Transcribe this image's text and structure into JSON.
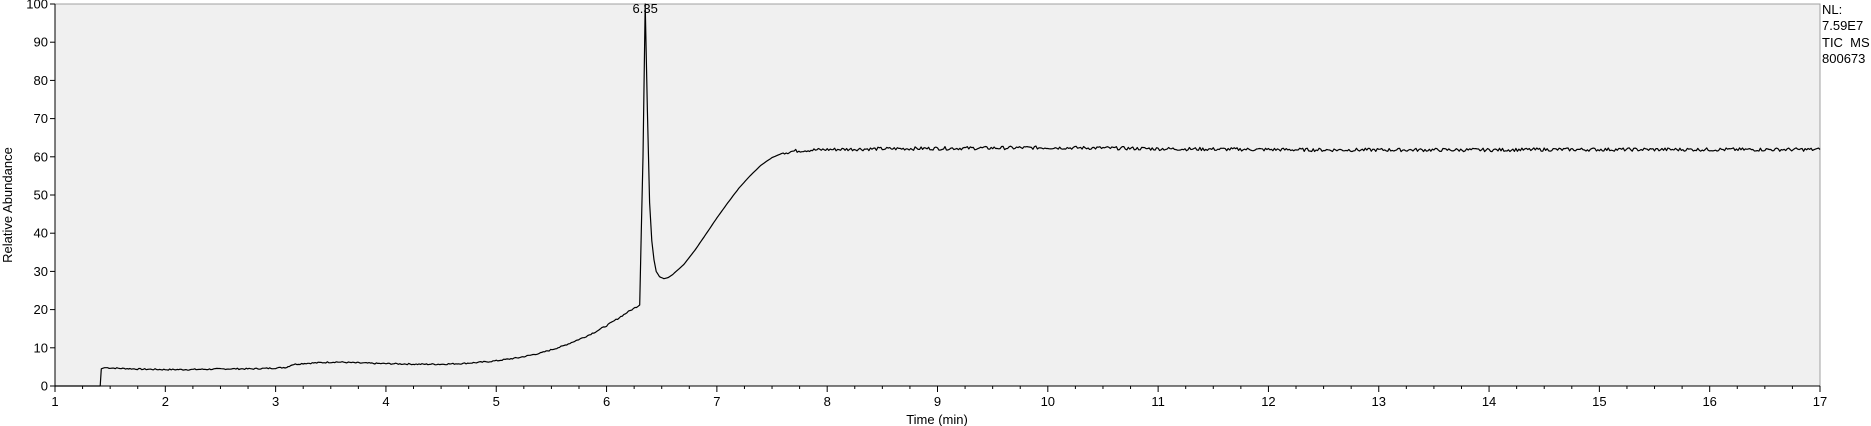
{
  "chart_data": {
    "type": "line",
    "title": "",
    "xlabel": "Time (min)",
    "ylabel": "Relative Abundance",
    "xlim": [
      1,
      17
    ],
    "ylim": [
      0,
      100
    ],
    "x_ticks": [
      "1",
      "2",
      "3",
      "4",
      "5",
      "6",
      "7",
      "8",
      "9",
      "10",
      "11",
      "12",
      "13",
      "14",
      "15",
      "16",
      "17"
    ],
    "y_ticks": [
      "0",
      "10",
      "20",
      "30",
      "40",
      "50",
      "60",
      "70",
      "80",
      "90",
      "100"
    ],
    "grid": false,
    "plot_background": "#f0f0f0",
    "line_color": "#000000",
    "series": [
      {
        "x": [
          1.0,
          1.41,
          1.42,
          1.45,
          1.6,
          1.8,
          2.0,
          2.2,
          2.4,
          2.6,
          2.8,
          3.0,
          3.1,
          3.15,
          3.25,
          3.4,
          3.55,
          3.7,
          3.9,
          4.1,
          4.3,
          4.5,
          4.7,
          4.9,
          5.0,
          5.2,
          5.4,
          5.6,
          5.8,
          5.9,
          6.0,
          6.1,
          6.2,
          6.3,
          6.33,
          6.35,
          6.37,
          6.39,
          6.41,
          6.43,
          6.45,
          6.48,
          6.52,
          6.56,
          6.6,
          6.7,
          6.8,
          6.9,
          7.0,
          7.1,
          7.2,
          7.3,
          7.4,
          7.5,
          7.6,
          7.7,
          7.8,
          8.0,
          8.5,
          9.0,
          9.5,
          10.0,
          10.5,
          11.0,
          11.5,
          12.0,
          12.5,
          13.0,
          13.5,
          14.0,
          14.5,
          15.0,
          15.5,
          16.0,
          16.5,
          17.0
        ],
        "y": [
          0.0,
          0.0,
          4.5,
          4.8,
          4.6,
          4.4,
          4.3,
          4.3,
          4.4,
          4.5,
          4.5,
          4.7,
          4.9,
          5.6,
          5.9,
          6.1,
          6.3,
          6.1,
          5.9,
          5.8,
          5.7,
          5.7,
          5.9,
          6.3,
          6.6,
          7.4,
          8.6,
          10.4,
          12.8,
          14.2,
          15.8,
          17.6,
          19.5,
          21.2,
          60.0,
          100.0,
          72.0,
          48.0,
          38.0,
          33.0,
          30.0,
          28.6,
          28.1,
          28.4,
          29.2,
          31.8,
          35.5,
          39.7,
          44.0,
          48.0,
          51.8,
          55.0,
          57.8,
          59.8,
          61.0,
          61.5,
          61.7,
          61.9,
          62.1,
          62.2,
          62.3,
          62.4,
          62.3,
          62.1,
          62.0,
          61.9,
          61.8,
          61.8,
          61.8,
          61.8,
          61.9,
          61.9,
          61.9,
          61.9,
          61.9,
          61.9
        ]
      }
    ],
    "annotations": [
      {
        "x": 6.35,
        "y": 100,
        "text": "6.35"
      }
    ],
    "info_box": [
      "NL:",
      "7.59E7",
      "TIC  MS",
      "800673"
    ]
  }
}
